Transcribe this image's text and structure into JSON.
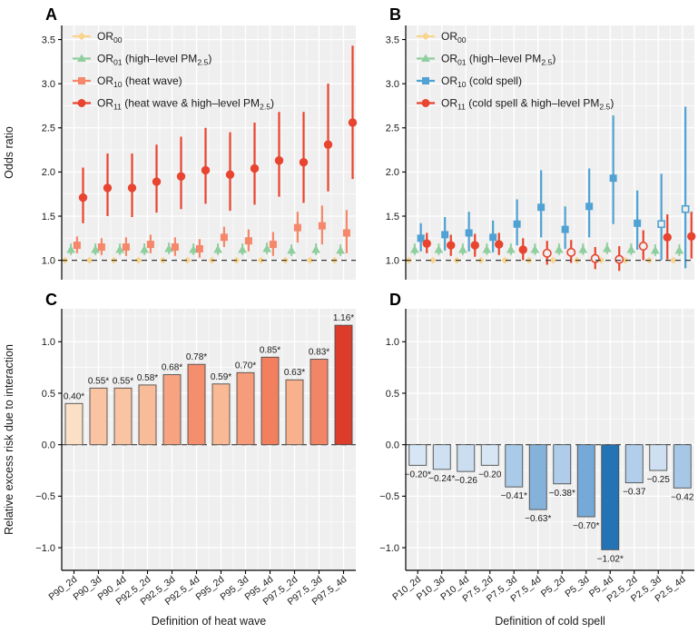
{
  "colors": {
    "panel_bg": "#EFEFEF",
    "grid": "#FFFFFF",
    "axis": "#000000",
    "ref_line": "#3a3a3a",
    "text": "#1a1a1a",
    "or00": "#F8D48C",
    "or01": "#8FCE9D",
    "or10_heat": "#F5876B",
    "or10_cold": "#4FA2D3",
    "or11": "#E8442F"
  },
  "chart_data": [
    {
      "panel_label": "A",
      "type": "scatter-errorbar",
      "ylabel": "Odds ratio",
      "categories": [
        "P90_2d",
        "P90_3d",
        "P90_4d",
        "P92.5_2d",
        "P92.5_3d",
        "P92.5_4d",
        "P95_2d",
        "P95_3d",
        "P95_4d",
        "P97.5_2d",
        "P97.5_3d",
        "P97.5_4d"
      ],
      "ytick_labels": [
        "1.0",
        "1.5",
        "2.0",
        "2.5",
        "3.0",
        "3.5"
      ],
      "ytick_values": [
        1.0,
        1.5,
        2.0,
        2.5,
        3.0,
        3.5
      ],
      "ylim": [
        0.78,
        3.66
      ],
      "ref_line": 1.0,
      "legend": [
        {
          "parts": [
            {
              "t": "OR"
            },
            {
              "t": "00",
              "sub": true
            }
          ],
          "color": "#F8D48C",
          "shape": "diamond"
        },
        {
          "parts": [
            {
              "t": "OR"
            },
            {
              "t": "01",
              "sub": true
            },
            {
              "t": " (high–level PM"
            },
            {
              "t": "2.5",
              "sub": true
            },
            {
              "t": ")"
            }
          ],
          "color": "#8FCE9D",
          "shape": "triangle"
        },
        {
          "parts": [
            {
              "t": "OR"
            },
            {
              "t": "10",
              "sub": true
            },
            {
              "t": " (heat wave)"
            }
          ],
          "color": "#F5876B",
          "shape": "square"
        },
        {
          "parts": [
            {
              "t": "OR"
            },
            {
              "t": "11",
              "sub": true
            },
            {
              "t": " (heat wave & high–level PM"
            },
            {
              "t": "2.5",
              "sub": true
            },
            {
              "t": ")"
            }
          ],
          "color": "#E8442F",
          "shape": "circle"
        }
      ],
      "series": [
        {
          "name": "OR00",
          "shape": "diamond",
          "color": "#F8D48C",
          "values": [
            1.0,
            1.0,
            1.0,
            1.0,
            1.0,
            1.0,
            1.0,
            1.0,
            1.0,
            1.0,
            1.0,
            1.0
          ],
          "lo": [
            1.0,
            1.0,
            1.0,
            1.0,
            1.0,
            1.0,
            1.0,
            1.0,
            1.0,
            1.0,
            1.0,
            1.0
          ],
          "hi": [
            1.0,
            1.0,
            1.0,
            1.0,
            1.0,
            1.0,
            1.0,
            1.0,
            1.0,
            1.0,
            1.0,
            1.0
          ],
          "open": [
            0,
            0,
            0,
            0,
            0,
            0,
            0,
            0,
            0,
            0,
            0,
            0
          ]
        },
        {
          "name": "OR01",
          "shape": "triangle",
          "color": "#8FCE9D",
          "values": [
            1.12,
            1.12,
            1.12,
            1.12,
            1.13,
            1.12,
            1.12,
            1.12,
            1.13,
            1.11,
            1.12,
            1.11
          ],
          "lo": [
            1.06,
            1.06,
            1.06,
            1.06,
            1.07,
            1.06,
            1.06,
            1.06,
            1.07,
            1.05,
            1.06,
            1.05
          ],
          "hi": [
            1.19,
            1.19,
            1.19,
            1.19,
            1.2,
            1.19,
            1.19,
            1.19,
            1.2,
            1.18,
            1.19,
            1.18
          ],
          "open": [
            0,
            0,
            0,
            0,
            0,
            0,
            0,
            0,
            0,
            0,
            0,
            0
          ]
        },
        {
          "name": "OR10",
          "shape": "square",
          "color": "#F5876B",
          "values": [
            1.17,
            1.15,
            1.15,
            1.18,
            1.15,
            1.13,
            1.26,
            1.22,
            1.18,
            1.37,
            1.39,
            1.31
          ],
          "lo": [
            1.08,
            1.06,
            1.05,
            1.08,
            1.05,
            1.03,
            1.15,
            1.1,
            1.05,
            1.2,
            1.18,
            1.08
          ],
          "hi": [
            1.27,
            1.25,
            1.26,
            1.29,
            1.26,
            1.24,
            1.38,
            1.35,
            1.32,
            1.55,
            1.62,
            1.57
          ],
          "open": [
            0,
            0,
            0,
            0,
            0,
            0,
            0,
            0,
            0,
            0,
            0,
            0
          ]
        },
        {
          "name": "OR11",
          "shape": "circle",
          "color": "#E8442F",
          "values": [
            1.71,
            1.82,
            1.82,
            1.89,
            1.95,
            2.02,
            1.97,
            2.04,
            2.13,
            2.11,
            2.31,
            2.56
          ],
          "lo": [
            1.42,
            1.5,
            1.49,
            1.54,
            1.58,
            1.64,
            1.56,
            1.63,
            1.72,
            1.65,
            1.78,
            1.92
          ],
          "hi": [
            2.05,
            2.21,
            2.21,
            2.31,
            2.4,
            2.5,
            2.45,
            2.56,
            2.68,
            2.68,
            3.0,
            3.43
          ],
          "open": [
            0,
            0,
            0,
            0,
            0,
            0,
            0,
            0,
            0,
            0,
            0,
            0
          ]
        }
      ]
    },
    {
      "panel_label": "B",
      "type": "scatter-errorbar",
      "ylabel": "",
      "categories": [
        "P10_2d",
        "P10_3d",
        "P10_4d",
        "P7.5_2d",
        "P7.5_3d",
        "P7.5_4d",
        "P5_2d",
        "P5_3d",
        "P5_4d",
        "P2.5_2d",
        "P2.5_3d",
        "P2.5_4d"
      ],
      "ytick_labels": [
        "1.0",
        "1.5",
        "2.0",
        "2.5",
        "3.0",
        "3.5"
      ],
      "ytick_values": [
        1.0,
        1.5,
        2.0,
        2.5,
        3.0,
        3.5
      ],
      "ylim": [
        0.78,
        3.66
      ],
      "ref_line": 1.0,
      "legend": [
        {
          "parts": [
            {
              "t": "OR"
            },
            {
              "t": "00",
              "sub": true
            }
          ],
          "color": "#F8D48C",
          "shape": "diamond"
        },
        {
          "parts": [
            {
              "t": "OR"
            },
            {
              "t": "01",
              "sub": true
            },
            {
              "t": " (high–level PM"
            },
            {
              "t": "2.5",
              "sub": true
            },
            {
              "t": ")"
            }
          ],
          "color": "#8FCE9D",
          "shape": "triangle"
        },
        {
          "parts": [
            {
              "t": "OR"
            },
            {
              "t": "10",
              "sub": true
            },
            {
              "t": " (cold spell)"
            }
          ],
          "color": "#4FA2D3",
          "shape": "square"
        },
        {
          "parts": [
            {
              "t": "OR"
            },
            {
              "t": "11",
              "sub": true
            },
            {
              "t": " (cold spell & high–level PM"
            },
            {
              "t": "2.5",
              "sub": true
            },
            {
              "t": ")"
            }
          ],
          "color": "#E8442F",
          "shape": "circle"
        }
      ],
      "series": [
        {
          "name": "OR00",
          "shape": "diamond",
          "color": "#F8D48C",
          "values": [
            1.0,
            1.0,
            1.0,
            1.0,
            1.0,
            1.0,
            1.0,
            1.0,
            1.0,
            1.0,
            1.0,
            1.0
          ],
          "lo": [
            1.0,
            1.0,
            1.0,
            1.0,
            1.0,
            1.0,
            1.0,
            1.0,
            1.0,
            1.0,
            1.0,
            1.0
          ],
          "hi": [
            1.0,
            1.0,
            1.0,
            1.0,
            1.0,
            1.0,
            1.0,
            1.0,
            1.0,
            1.0,
            1.0,
            1.0
          ],
          "open": [
            0,
            0,
            0,
            0,
            0,
            0,
            0,
            0,
            0,
            0,
            0,
            0
          ]
        },
        {
          "name": "OR01",
          "shape": "triangle",
          "color": "#8FCE9D",
          "values": [
            1.12,
            1.12,
            1.12,
            1.12,
            1.12,
            1.12,
            1.12,
            1.12,
            1.13,
            1.12,
            1.11,
            1.11
          ],
          "lo": [
            1.06,
            1.06,
            1.06,
            1.06,
            1.06,
            1.06,
            1.06,
            1.06,
            1.07,
            1.06,
            1.05,
            1.05
          ],
          "hi": [
            1.19,
            1.19,
            1.19,
            1.19,
            1.19,
            1.19,
            1.19,
            1.19,
            1.2,
            1.19,
            1.18,
            1.18
          ],
          "open": [
            0,
            0,
            0,
            0,
            0,
            0,
            0,
            0,
            0,
            0,
            0,
            0
          ]
        },
        {
          "name": "OR10",
          "shape": "square",
          "color": "#4FA2D3",
          "values": [
            1.25,
            1.29,
            1.31,
            1.26,
            1.41,
            1.6,
            1.35,
            1.61,
            1.93,
            1.42,
            1.41,
            1.58
          ],
          "lo": [
            1.1,
            1.11,
            1.1,
            1.09,
            1.17,
            1.26,
            1.13,
            1.26,
            1.41,
            1.12,
            1.0,
            0.91
          ],
          "hi": [
            1.42,
            1.49,
            1.55,
            1.45,
            1.69,
            2.02,
            1.61,
            2.04,
            2.64,
            1.79,
            1.98,
            2.74
          ],
          "open": [
            0,
            0,
            0,
            0,
            0,
            0,
            0,
            0,
            0,
            0,
            1,
            1
          ]
        },
        {
          "name": "OR11",
          "shape": "circle",
          "color": "#E8442F",
          "values": [
            1.19,
            1.17,
            1.17,
            1.18,
            1.12,
            1.08,
            1.09,
            1.02,
            1.01,
            1.16,
            1.26,
            1.27
          ],
          "lo": [
            1.08,
            1.05,
            1.04,
            1.06,
            1.0,
            0.95,
            0.97,
            0.9,
            0.88,
            1.0,
            1.01,
            1.02
          ],
          "hi": [
            1.31,
            1.29,
            1.3,
            1.31,
            1.25,
            1.22,
            1.23,
            1.15,
            1.16,
            1.34,
            1.52,
            1.55
          ],
          "open": [
            0,
            0,
            0,
            0,
            0,
            1,
            1,
            1,
            1,
            1,
            0,
            0
          ]
        }
      ]
    },
    {
      "panel_label": "C",
      "type": "bar",
      "ylabel": "Relative excess risk due to interaction",
      "xlabel": "Definition of heat wave",
      "categories": [
        "P90_2d",
        "P90_3d",
        "P90_4d",
        "P92.5_2d",
        "P92.5_3d",
        "P92.5_4d",
        "P95_2d",
        "P95_3d",
        "P95_4d",
        "P97.5_2d",
        "P97.5_3d",
        "P97.5_4d"
      ],
      "values": [
        0.4,
        0.55,
        0.55,
        0.58,
        0.68,
        0.78,
        0.59,
        0.7,
        0.85,
        0.63,
        0.83,
        1.16
      ],
      "labels": [
        "0.40*",
        "0.55*",
        "0.55*",
        "0.58*",
        "0.68*",
        "0.78*",
        "0.59*",
        "0.70*",
        "0.85*",
        "0.63*",
        "0.83*",
        "1.16*"
      ],
      "bar_colors": [
        "#FCE0C6",
        "#FAC3A2",
        "#FAC3A2",
        "#F9BC98",
        "#F7A381",
        "#F48E6D",
        "#F9B995",
        "#F69C7A",
        "#F2805F",
        "#F8B08D",
        "#F28566",
        "#DC3D2B"
      ],
      "label_position": "above",
      "ytick_labels": [
        "−1.0",
        "−0.5",
        "0.0",
        "0.5",
        "1.0"
      ],
      "ytick_values": [
        -1.0,
        -0.5,
        0.0,
        0.5,
        1.0
      ],
      "ylim": [
        -1.22,
        1.32
      ],
      "ref_line": 0.0
    },
    {
      "panel_label": "D",
      "type": "bar",
      "ylabel": "",
      "xlabel": "Definition of cold spell",
      "categories": [
        "P10_2d",
        "P10_3d",
        "P10_4d",
        "P7.5_2d",
        "P7.5_3d",
        "P7.5_4d",
        "P5_2d",
        "P5_3d",
        "P5_4d",
        "P2.5_2d",
        "P2.5_3d",
        "P2.5_4d"
      ],
      "values": [
        -0.2,
        -0.24,
        -0.26,
        -0.2,
        -0.41,
        -0.63,
        -0.38,
        -0.7,
        -1.02,
        -0.37,
        -0.25,
        -0.42
      ],
      "labels": [
        "−0.20*",
        "−0.24*",
        "−0.26",
        "−0.20",
        "−0.41*",
        "−0.63*",
        "−0.38*",
        "−0.70*",
        "−1.02*",
        "−0.37",
        "−0.25",
        "−0.42"
      ],
      "bar_colors": [
        "#D6E6F4",
        "#CEE0F1",
        "#CBDEF0",
        "#D6E6F4",
        "#A9CAE8",
        "#84B2DB",
        "#AFCDEA",
        "#76A9D7",
        "#2473B5",
        "#B1CFEA",
        "#CDDFF1",
        "#A7C7E7"
      ],
      "label_position": "below",
      "ytick_labels": [
        "−1.0",
        "−0.5",
        "0.0",
        "0.5",
        "1.0"
      ],
      "ytick_values": [
        -1.0,
        -0.5,
        0.0,
        0.5,
        1.0
      ],
      "ylim": [
        -1.22,
        1.32
      ],
      "ref_line": 0.0
    }
  ]
}
